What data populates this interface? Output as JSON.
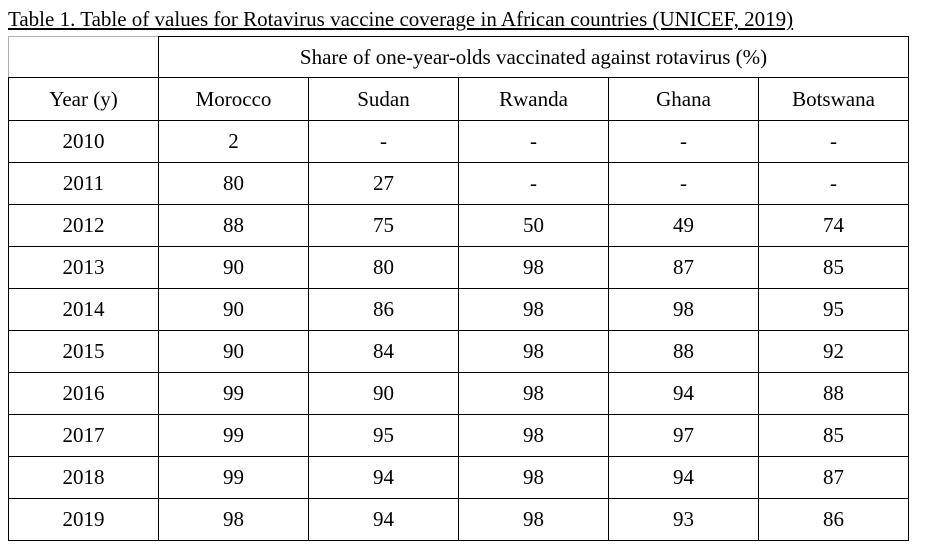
{
  "caption": "Table 1. Table of values for Rotavirus vaccine coverage in African countries (UNICEF, 2019)",
  "table": {
    "group_header": "Share of one-year-olds vaccinated against rotavirus (%)",
    "year_header": "Year (y)",
    "columns": [
      "Morocco",
      "Sudan",
      "Rwanda",
      "Ghana",
      "Botswana"
    ],
    "rows": [
      {
        "year": "2010",
        "values": [
          "2",
          "-",
          "-",
          "-",
          "-"
        ]
      },
      {
        "year": "2011",
        "values": [
          "80",
          "27",
          "-",
          "-",
          "-"
        ]
      },
      {
        "year": "2012",
        "values": [
          "88",
          "75",
          "50",
          "49",
          "74"
        ]
      },
      {
        "year": "2013",
        "values": [
          "90",
          "80",
          "98",
          "87",
          "85"
        ]
      },
      {
        "year": "2014",
        "values": [
          "90",
          "86",
          "98",
          "98",
          "95"
        ]
      },
      {
        "year": "2015",
        "values": [
          "90",
          "84",
          "98",
          "88",
          "92"
        ]
      },
      {
        "year": "2016",
        "values": [
          "99",
          "90",
          "98",
          "94",
          "88"
        ]
      },
      {
        "year": "2017",
        "values": [
          "99",
          "95",
          "98",
          "97",
          "85"
        ]
      },
      {
        "year": "2018",
        "values": [
          "99",
          "94",
          "98",
          "94",
          "87"
        ]
      },
      {
        "year": "2019",
        "values": [
          "98",
          "94",
          "98",
          "93",
          "86"
        ]
      }
    ]
  }
}
